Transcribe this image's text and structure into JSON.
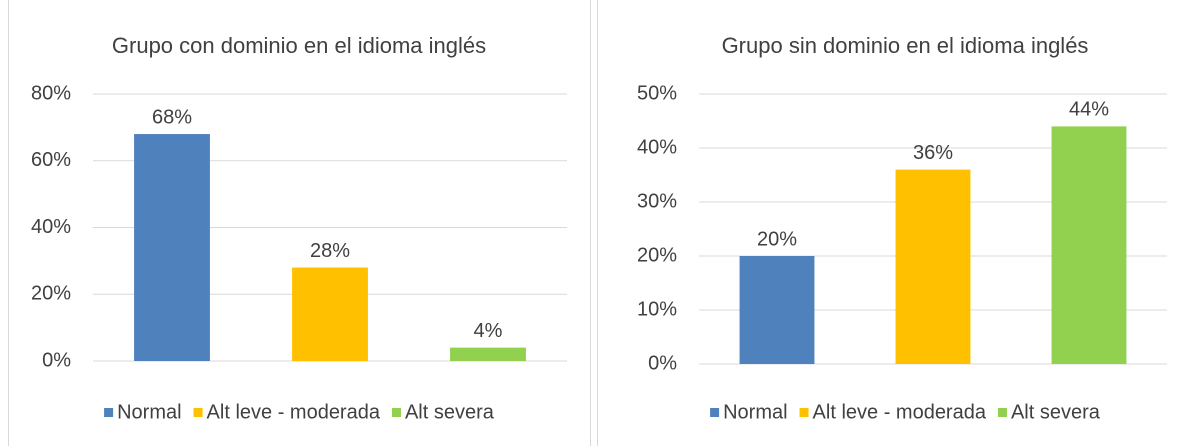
{
  "chart_data": [
    {
      "type": "bar",
      "title": "Grupo con dominio en el idioma inglés",
      "categories": [
        "Normal",
        "Alt leve - moderada",
        "Alt severa"
      ],
      "colors": [
        "#4f81bd",
        "#ffc000",
        "#92d050"
      ],
      "values": [
        68,
        28,
        4
      ],
      "value_labels": [
        "68%",
        "28%",
        "4%"
      ],
      "ylim": [
        0,
        80
      ],
      "yticks": [
        {
          "value": 0,
          "label": "0%"
        },
        {
          "value": 20,
          "label": "20%"
        },
        {
          "value": 40,
          "label": "40%"
        },
        {
          "value": 60,
          "label": "60%"
        },
        {
          "value": 80,
          "label": "80%"
        }
      ],
      "grid": true,
      "legend": "bottom"
    },
    {
      "type": "bar",
      "title": "Grupo sin dominio en el idioma inglés",
      "categories": [
        "Normal",
        "Alt leve - moderada",
        "Alt severa"
      ],
      "colors": [
        "#4f81bd",
        "#ffc000",
        "#92d050"
      ],
      "values": [
        20,
        36,
        44
      ],
      "value_labels": [
        "20%",
        "36%",
        "44%"
      ],
      "ylim": [
        0,
        50
      ],
      "yticks": [
        {
          "value": 0,
          "label": "0%"
        },
        {
          "value": 10,
          "label": "10%"
        },
        {
          "value": 20,
          "label": "20%"
        },
        {
          "value": 30,
          "label": "30%"
        },
        {
          "value": 40,
          "label": "40%"
        },
        {
          "value": 50,
          "label": "50%"
        }
      ],
      "grid": true,
      "legend": "bottom"
    }
  ]
}
